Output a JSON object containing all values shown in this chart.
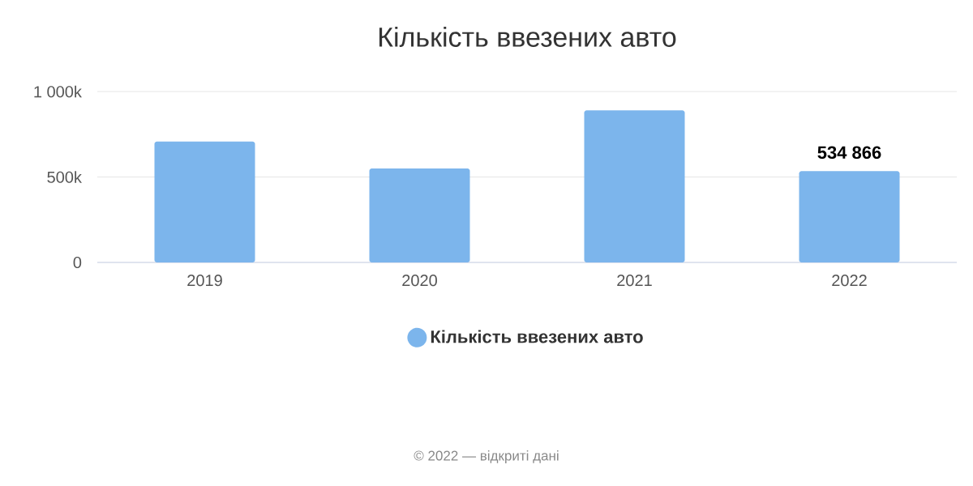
{
  "chart_data": {
    "type": "bar",
    "title": "Кількість ввезених авто",
    "categories": [
      "2019",
      "2020",
      "2021",
      "2022"
    ],
    "series": [
      {
        "name": "Кількість ввезених авто",
        "color": "#7cb5ec",
        "values": [
          707000,
          550000,
          890000,
          534866
        ],
        "value_labels": [
          null,
          null,
          null,
          "534 866"
        ]
      }
    ],
    "ylim": [
      0,
      1000000
    ],
    "yticks": [
      {
        "value": 0,
        "label": "0"
      },
      {
        "value": 500000,
        "label": "500k"
      },
      {
        "value": 1000000,
        "label": "1 000k"
      }
    ],
    "grid": "y",
    "legend": "bottom",
    "annotations": [
      "© 2022 — відкриті дані"
    ]
  }
}
